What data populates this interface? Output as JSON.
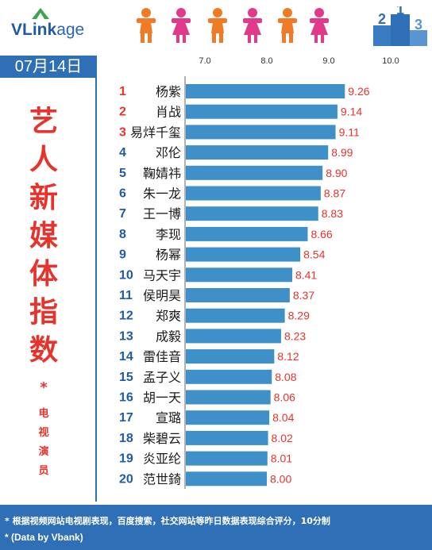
{
  "brand": {
    "logo_part1": "VLink",
    "logo_part2": "age"
  },
  "date": "07月14日",
  "title_chars": [
    "艺",
    "人",
    "新",
    "媒",
    "体",
    "指",
    "数"
  ],
  "asterisk": "*",
  "subtitle_chars": [
    "电",
    "视",
    "演",
    "员"
  ],
  "footer": {
    "note1": "* 根据视频网站电视剧表现，百度搜索，社交网站等昨日数据表现综合评分，10分制",
    "note2": "* (Data by Vbank)"
  },
  "colors": {
    "bar": "#3f8fc8",
    "value": "#e8322c",
    "rank": "#e8322c",
    "rank_default": "#1f5aa6",
    "accent": "#2e6fb5"
  },
  "icons": [
    "person-orange-icon",
    "person-pink-icon",
    "podium-icon"
  ],
  "chart_data": {
    "type": "bar",
    "orientation": "horizontal",
    "x_ticks": [
      "7.0",
      "8.0",
      "9.0",
      "10.0"
    ],
    "xlim": [
      7.0,
      10.0
    ],
    "grid": false,
    "ranks": [
      "1",
      "2",
      "3",
      "4",
      "5",
      "6",
      "7",
      "8",
      "9",
      "10",
      "11",
      "12",
      "13",
      "14",
      "15",
      "16",
      "17",
      "18",
      "19",
      "20"
    ],
    "categories": [
      "杨紫",
      "肖战",
      "易烊千玺",
      "邓伦",
      "鞠婧祎",
      "朱一龙",
      "王一博",
      "李现",
      "杨幂",
      "马天宇",
      "侯明昊",
      "郑爽",
      "成毅",
      "雷佳音",
      "孟子义",
      "胡一天",
      "宣璐",
      "柴碧云",
      "炎亚纶",
      "范世錡"
    ],
    "values": [
      9.26,
      9.14,
      9.11,
      8.99,
      8.9,
      8.87,
      8.83,
      8.66,
      8.54,
      8.41,
      8.37,
      8.29,
      8.23,
      8.12,
      8.08,
      8.06,
      8.04,
      8.02,
      8.01,
      8.0
    ],
    "value_labels": [
      "9.26",
      "9.14",
      "9.11",
      "8.99",
      "8.90",
      "8.87",
      "8.83",
      "8.66",
      "8.54",
      "8.41",
      "8.37",
      "8.29",
      "8.23",
      "8.12",
      "8.08",
      "8.06",
      "8.04",
      "8.02",
      "8.01",
      "8.00"
    ]
  }
}
